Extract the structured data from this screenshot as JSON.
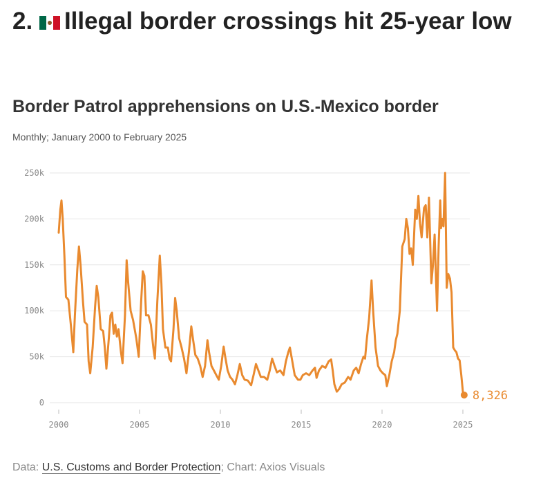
{
  "headline": {
    "number": "2.",
    "text": "Illegal border crossings hit 25-year low",
    "icon": "mexico-flag-icon"
  },
  "footer": {
    "data_prefix": "Data: ",
    "source_link": "U.S. Customs and Border Protection",
    "chart_credit": "; Chart: Axios Visuals"
  },
  "colors": {
    "line": "#e98a2f",
    "grid": "#e6e6e6",
    "tick": "#888888"
  },
  "chart_data": {
    "type": "line",
    "title": "Border Patrol apprehensions on U.S.-Mexico border",
    "subtitle": "Monthly; January 2000 to February 2025",
    "xlim": [
      2000,
      2025.2
    ],
    "ylim": [
      0,
      250000
    ],
    "x_ticks": [
      2000,
      2005,
      2010,
      2015,
      2020,
      2025
    ],
    "y_ticks": [
      {
        "value": 0,
        "label": "0"
      },
      {
        "value": 50000,
        "label": "50k"
      },
      {
        "value": 100000,
        "label": "100k"
      },
      {
        "value": 150000,
        "label": "150k"
      },
      {
        "value": 200000,
        "label": "200k"
      },
      {
        "value": 250000,
        "label": "250k"
      }
    ],
    "grid": true,
    "end_label": "8,326",
    "series": [
      {
        "values": [
          [
            2000.0,
            185000
          ],
          [
            2000.1,
            210000
          ],
          [
            2000.17,
            220000
          ],
          [
            2000.25,
            200000
          ],
          [
            2000.35,
            160000
          ],
          [
            2000.45,
            115000
          ],
          [
            2000.6,
            112000
          ],
          [
            2000.75,
            85000
          ],
          [
            2000.9,
            55000
          ],
          [
            2001.0,
            95000
          ],
          [
            2001.15,
            145000
          ],
          [
            2001.25,
            170000
          ],
          [
            2001.35,
            150000
          ],
          [
            2001.5,
            110000
          ],
          [
            2001.6,
            88000
          ],
          [
            2001.75,
            85000
          ],
          [
            2001.85,
            45000
          ],
          [
            2001.95,
            32000
          ],
          [
            2002.1,
            60000
          ],
          [
            2002.25,
            105000
          ],
          [
            2002.35,
            127000
          ],
          [
            2002.45,
            115000
          ],
          [
            2002.6,
            80000
          ],
          [
            2002.75,
            78000
          ],
          [
            2002.85,
            60000
          ],
          [
            2002.95,
            37000
          ],
          [
            2003.1,
            70000
          ],
          [
            2003.2,
            95000
          ],
          [
            2003.3,
            98000
          ],
          [
            2003.4,
            75000
          ],
          [
            2003.5,
            85000
          ],
          [
            2003.6,
            72000
          ],
          [
            2003.7,
            80000
          ],
          [
            2003.85,
            55000
          ],
          [
            2003.95,
            43000
          ],
          [
            2004.1,
            95000
          ],
          [
            2004.2,
            155000
          ],
          [
            2004.3,
            130000
          ],
          [
            2004.45,
            100000
          ],
          [
            2004.6,
            90000
          ],
          [
            2004.8,
            70000
          ],
          [
            2004.95,
            50000
          ],
          [
            2005.1,
            110000
          ],
          [
            2005.2,
            143000
          ],
          [
            2005.3,
            138000
          ],
          [
            2005.4,
            95000
          ],
          [
            2005.55,
            95000
          ],
          [
            2005.7,
            85000
          ],
          [
            2005.85,
            60000
          ],
          [
            2005.95,
            48000
          ],
          [
            2006.1,
            110000
          ],
          [
            2006.25,
            160000
          ],
          [
            2006.35,
            130000
          ],
          [
            2006.45,
            80000
          ],
          [
            2006.6,
            60000
          ],
          [
            2006.75,
            60000
          ],
          [
            2006.85,
            48000
          ],
          [
            2006.95,
            45000
          ],
          [
            2007.1,
            80000
          ],
          [
            2007.2,
            114000
          ],
          [
            2007.3,
            100000
          ],
          [
            2007.45,
            70000
          ],
          [
            2007.6,
            60000
          ],
          [
            2007.75,
            48000
          ],
          [
            2007.9,
            32000
          ],
          [
            2008.05,
            55000
          ],
          [
            2008.2,
            83000
          ],
          [
            2008.3,
            70000
          ],
          [
            2008.45,
            52000
          ],
          [
            2008.6,
            48000
          ],
          [
            2008.75,
            40000
          ],
          [
            2008.9,
            28000
          ],
          [
            2009.05,
            40000
          ],
          [
            2009.2,
            68000
          ],
          [
            2009.3,
            55000
          ],
          [
            2009.45,
            40000
          ],
          [
            2009.6,
            35000
          ],
          [
            2009.75,
            30000
          ],
          [
            2009.9,
            25000
          ],
          [
            2010.05,
            40000
          ],
          [
            2010.2,
            61000
          ],
          [
            2010.3,
            50000
          ],
          [
            2010.45,
            35000
          ],
          [
            2010.6,
            28000
          ],
          [
            2010.75,
            25000
          ],
          [
            2010.9,
            20000
          ],
          [
            2011.05,
            30000
          ],
          [
            2011.2,
            42000
          ],
          [
            2011.35,
            30000
          ],
          [
            2011.5,
            25000
          ],
          [
            2011.7,
            24000
          ],
          [
            2011.9,
            19000
          ],
          [
            2012.05,
            30000
          ],
          [
            2012.2,
            42000
          ],
          [
            2012.35,
            35000
          ],
          [
            2012.5,
            28000
          ],
          [
            2012.7,
            28000
          ],
          [
            2012.9,
            25000
          ],
          [
            2013.05,
            35000
          ],
          [
            2013.2,
            48000
          ],
          [
            2013.35,
            40000
          ],
          [
            2013.5,
            33000
          ],
          [
            2013.7,
            35000
          ],
          [
            2013.9,
            30000
          ],
          [
            2014.05,
            45000
          ],
          [
            2014.2,
            55000
          ],
          [
            2014.3,
            60000
          ],
          [
            2014.45,
            45000
          ],
          [
            2014.6,
            30000
          ],
          [
            2014.8,
            25000
          ],
          [
            2014.95,
            25000
          ],
          [
            2015.1,
            30000
          ],
          [
            2015.3,
            32000
          ],
          [
            2015.5,
            30000
          ],
          [
            2015.7,
            35000
          ],
          [
            2015.85,
            38000
          ],
          [
            2015.95,
            27000
          ],
          [
            2016.1,
            35000
          ],
          [
            2016.3,
            40000
          ],
          [
            2016.5,
            38000
          ],
          [
            2016.7,
            45000
          ],
          [
            2016.85,
            47000
          ],
          [
            2016.95,
            35000
          ],
          [
            2017.05,
            20000
          ],
          [
            2017.2,
            12000
          ],
          [
            2017.35,
            15000
          ],
          [
            2017.5,
            20000
          ],
          [
            2017.7,
            22000
          ],
          [
            2017.9,
            28000
          ],
          [
            2018.05,
            25000
          ],
          [
            2018.25,
            35000
          ],
          [
            2018.4,
            38000
          ],
          [
            2018.55,
            32000
          ],
          [
            2018.7,
            42000
          ],
          [
            2018.85,
            50000
          ],
          [
            2018.95,
            48000
          ],
          [
            2019.05,
            68000
          ],
          [
            2019.2,
            92000
          ],
          [
            2019.35,
            133000
          ],
          [
            2019.45,
            100000
          ],
          [
            2019.6,
            60000
          ],
          [
            2019.75,
            40000
          ],
          [
            2019.9,
            35000
          ],
          [
            2020.05,
            32000
          ],
          [
            2020.2,
            30000
          ],
          [
            2020.3,
            18000
          ],
          [
            2020.45,
            30000
          ],
          [
            2020.6,
            45000
          ],
          [
            2020.75,
            55000
          ],
          [
            2020.85,
            68000
          ],
          [
            2020.95,
            75000
          ],
          [
            2021.1,
            100000
          ],
          [
            2021.25,
            170000
          ],
          [
            2021.4,
            178000
          ],
          [
            2021.5,
            200000
          ],
          [
            2021.6,
            190000
          ],
          [
            2021.7,
            162000
          ],
          [
            2021.8,
            168000
          ],
          [
            2021.9,
            150000
          ],
          [
            2022.05,
            210000
          ],
          [
            2022.15,
            200000
          ],
          [
            2022.25,
            225000
          ],
          [
            2022.35,
            195000
          ],
          [
            2022.45,
            180000
          ],
          [
            2022.6,
            212000
          ],
          [
            2022.7,
            215000
          ],
          [
            2022.8,
            180000
          ],
          [
            2022.9,
            223000
          ],
          [
            2023.05,
            130000
          ],
          [
            2023.15,
            150000
          ],
          [
            2023.25,
            183000
          ],
          [
            2023.4,
            100000
          ],
          [
            2023.5,
            170000
          ],
          [
            2023.6,
            220000
          ],
          [
            2023.65,
            190000
          ],
          [
            2023.72,
            200000
          ],
          [
            2023.8,
            192000
          ],
          [
            2023.9,
            250000
          ],
          [
            2024.0,
            125000
          ],
          [
            2024.1,
            140000
          ],
          [
            2024.2,
            135000
          ],
          [
            2024.3,
            120000
          ],
          [
            2024.4,
            60000
          ],
          [
            2024.5,
            57000
          ],
          [
            2024.6,
            55000
          ],
          [
            2024.7,
            48000
          ],
          [
            2024.8,
            46000
          ],
          [
            2024.9,
            30000
          ],
          [
            2025.0,
            12000
          ],
          [
            2025.08,
            8326
          ]
        ]
      }
    ]
  }
}
